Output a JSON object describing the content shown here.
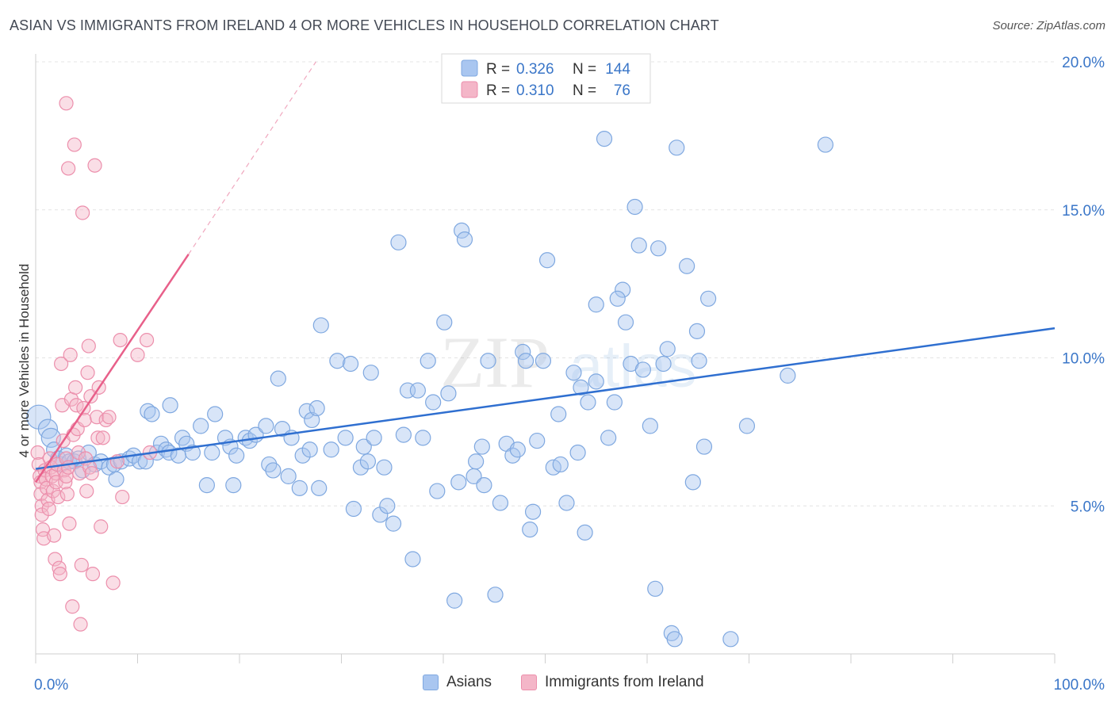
{
  "header": {
    "title": "ASIAN VS IMMIGRANTS FROM IRELAND 4 OR MORE VEHICLES IN HOUSEHOLD CORRELATION CHART",
    "source": "Source: ZipAtlas.com"
  },
  "watermark": {
    "zip": "ZIP",
    "atlas": "atlas"
  },
  "colors": {
    "blue_fill": "#a9c6f0",
    "blue_stroke": "#7fa8e0",
    "blue_line": "#2f6fd0",
    "pink_fill": "#f4b6c8",
    "pink_stroke": "#ec8fac",
    "pink_line": "#e8608a",
    "axis_text": "#3a76c8",
    "grid": "#e2e2e2"
  },
  "legend_box": {
    "rows": [
      {
        "r_label": "R =",
        "r_value": "0.326",
        "n_label": "N =",
        "n_value": "144",
        "color": "#a9c6f0"
      },
      {
        "r_label": "R =",
        "r_value": "0.310",
        "n_label": "N =",
        "n_value": "76",
        "color": "#f4b6c8"
      }
    ]
  },
  "bottom_legend": [
    {
      "label": "Asians",
      "color": "#a9c6f0"
    },
    {
      "label": "Immigrants from Ireland",
      "color": "#f4b6c8"
    }
  ],
  "chart_data": {
    "type": "scatter",
    "title": "ASIAN VS IMMIGRANTS FROM IRELAND 4 OR MORE VEHICLES IN HOUSEHOLD CORRELATION CHART",
    "xlabel": "",
    "ylabel": "4 or more Vehicles in Household",
    "xlim": [
      0,
      100
    ],
    "ylim": [
      0,
      20
    ],
    "x_tick_labels": [
      {
        "value": 0,
        "label": "0.0%"
      },
      {
        "value": 100,
        "label": "100.0%"
      }
    ],
    "y_tick_labels": [
      {
        "value": 5,
        "label": "5.0%"
      },
      {
        "value": 10,
        "label": "10.0%"
      },
      {
        "value": 15,
        "label": "15.0%"
      },
      {
        "value": 20,
        "label": "20.0%"
      }
    ],
    "grid": true,
    "legend_position": "top-center",
    "series": [
      {
        "name": "Asians",
        "color": "#a9c6f0",
        "trend": {
          "x": [
            0,
            100
          ],
          "y": [
            6.25,
            11.0
          ]
        },
        "points": [
          [
            0.3,
            8.0
          ],
          [
            1.2,
            7.6
          ],
          [
            1.5,
            7.3
          ],
          [
            1.8,
            6.9
          ],
          [
            2.2,
            6.6
          ],
          [
            2.5,
            6.4
          ],
          [
            3.0,
            6.7
          ],
          [
            3.3,
            6.5
          ],
          [
            3.8,
            6.5
          ],
          [
            4.2,
            6.6
          ],
          [
            4.6,
            6.2
          ],
          [
            5.2,
            6.8
          ],
          [
            5.8,
            6.4
          ],
          [
            6.4,
            6.5
          ],
          [
            7.2,
            6.3
          ],
          [
            7.7,
            6.4
          ],
          [
            7.9,
            5.9
          ],
          [
            8.4,
            6.5
          ],
          [
            9.2,
            6.6
          ],
          [
            9.6,
            6.7
          ],
          [
            10.2,
            6.5
          ],
          [
            10.8,
            6.5
          ],
          [
            11.0,
            8.2
          ],
          [
            11.4,
            8.1
          ],
          [
            11.9,
            6.8
          ],
          [
            12.3,
            7.1
          ],
          [
            12.8,
            6.9
          ],
          [
            13.1,
            6.8
          ],
          [
            13.2,
            8.4
          ],
          [
            14.0,
            6.7
          ],
          [
            14.4,
            7.3
          ],
          [
            14.8,
            7.1
          ],
          [
            15.4,
            6.8
          ],
          [
            16.2,
            7.7
          ],
          [
            16.8,
            5.7
          ],
          [
            17.3,
            6.8
          ],
          [
            17.6,
            8.1
          ],
          [
            18.6,
            7.3
          ],
          [
            19.1,
            7.0
          ],
          [
            19.4,
            5.7
          ],
          [
            19.7,
            6.7
          ],
          [
            20.6,
            7.3
          ],
          [
            21.0,
            7.2
          ],
          [
            21.6,
            7.4
          ],
          [
            22.6,
            7.7
          ],
          [
            22.9,
            6.4
          ],
          [
            23.3,
            6.2
          ],
          [
            23.8,
            9.3
          ],
          [
            24.2,
            7.6
          ],
          [
            24.8,
            6.0
          ],
          [
            25.1,
            7.3
          ],
          [
            25.9,
            5.6
          ],
          [
            26.2,
            6.7
          ],
          [
            26.6,
            8.2
          ],
          [
            26.9,
            6.9
          ],
          [
            27.1,
            7.9
          ],
          [
            27.6,
            8.3
          ],
          [
            27.8,
            5.6
          ],
          [
            28.0,
            11.1
          ],
          [
            29.0,
            6.9
          ],
          [
            29.6,
            9.9
          ],
          [
            30.4,
            7.3
          ],
          [
            30.9,
            9.8
          ],
          [
            31.2,
            4.9
          ],
          [
            31.9,
            6.3
          ],
          [
            32.2,
            7.0
          ],
          [
            32.6,
            6.5
          ],
          [
            32.9,
            9.5
          ],
          [
            33.2,
            7.3
          ],
          [
            33.8,
            4.7
          ],
          [
            34.2,
            6.3
          ],
          [
            34.5,
            5.0
          ],
          [
            35.1,
            4.4
          ],
          [
            35.6,
            13.9
          ],
          [
            36.1,
            7.4
          ],
          [
            36.5,
            8.9
          ],
          [
            37.0,
            3.2
          ],
          [
            37.5,
            8.9
          ],
          [
            38.0,
            7.3
          ],
          [
            38.5,
            9.9
          ],
          [
            39.0,
            8.5
          ],
          [
            39.4,
            5.5
          ],
          [
            40.1,
            11.2
          ],
          [
            40.5,
            8.8
          ],
          [
            41.1,
            1.8
          ],
          [
            41.5,
            5.8
          ],
          [
            41.8,
            14.3
          ],
          [
            42.1,
            14.0
          ],
          [
            43.0,
            6.0
          ],
          [
            43.2,
            6.5
          ],
          [
            43.8,
            7.0
          ],
          [
            44.0,
            5.7
          ],
          [
            44.4,
            9.9
          ],
          [
            45.1,
            2.0
          ],
          [
            45.6,
            5.1
          ],
          [
            46.2,
            7.1
          ],
          [
            46.8,
            6.7
          ],
          [
            47.3,
            6.9
          ],
          [
            47.8,
            10.2
          ],
          [
            48.1,
            9.9
          ],
          [
            48.5,
            4.2
          ],
          [
            48.8,
            4.8
          ],
          [
            49.2,
            7.2
          ],
          [
            49.8,
            9.9
          ],
          [
            50.2,
            13.3
          ],
          [
            50.8,
            6.3
          ],
          [
            51.3,
            8.1
          ],
          [
            51.5,
            6.4
          ],
          [
            52.1,
            5.1
          ],
          [
            52.8,
            9.5
          ],
          [
            53.2,
            6.8
          ],
          [
            53.5,
            9.0
          ],
          [
            53.9,
            4.1
          ],
          [
            54.2,
            8.5
          ],
          [
            55.0,
            9.2
          ],
          [
            55.8,
            17.4
          ],
          [
            56.2,
            7.3
          ],
          [
            56.8,
            8.5
          ],
          [
            57.6,
            12.3
          ],
          [
            57.9,
            11.2
          ],
          [
            58.4,
            9.8
          ],
          [
            59.2,
            13.8
          ],
          [
            59.6,
            9.6
          ],
          [
            60.3,
            7.7
          ],
          [
            60.8,
            2.2
          ],
          [
            61.1,
            13.7
          ],
          [
            61.6,
            9.8
          ],
          [
            62.0,
            10.3
          ],
          [
            62.4,
            0.7
          ],
          [
            62.7,
            0.5
          ],
          [
            62.9,
            17.1
          ],
          [
            63.9,
            13.1
          ],
          [
            64.5,
            5.8
          ],
          [
            64.9,
            10.9
          ],
          [
            65.1,
            9.9
          ],
          [
            65.6,
            7.0
          ],
          [
            66.0,
            12.0
          ],
          [
            68.2,
            0.5
          ],
          [
            69.8,
            7.7
          ],
          [
            73.8,
            9.4
          ],
          [
            77.5,
            17.2
          ],
          [
            57.1,
            12.0
          ],
          [
            58.8,
            15.1
          ],
          [
            55.0,
            11.8
          ]
        ]
      },
      {
        "name": "Immigrants from Ireland",
        "color": "#f4b6c8",
        "trend": {
          "x": [
            0,
            15
          ],
          "y": [
            5.8,
            13.5
          ]
        },
        "trend_dashed": {
          "x": [
            15,
            27.5
          ],
          "y": [
            13.5,
            20.0
          ]
        },
        "points": [
          [
            0.2,
            6.8
          ],
          [
            0.3,
            6.4
          ],
          [
            0.4,
            6.0
          ],
          [
            0.5,
            5.8
          ],
          [
            0.5,
            5.4
          ],
          [
            0.6,
            5.0
          ],
          [
            0.6,
            4.7
          ],
          [
            0.7,
            4.2
          ],
          [
            0.8,
            3.9
          ],
          [
            0.9,
            6.2
          ],
          [
            1.0,
            5.9
          ],
          [
            1.1,
            5.6
          ],
          [
            1.2,
            5.2
          ],
          [
            1.3,
            4.9
          ],
          [
            1.4,
            6.6
          ],
          [
            1.5,
            6.3
          ],
          [
            1.6,
            6.0
          ],
          [
            1.7,
            5.5
          ],
          [
            1.8,
            4.0
          ],
          [
            1.9,
            3.2
          ],
          [
            2.0,
            6.1
          ],
          [
            2.0,
            5.8
          ],
          [
            2.1,
            6.4
          ],
          [
            2.2,
            5.3
          ],
          [
            2.3,
            2.9
          ],
          [
            2.4,
            2.7
          ],
          [
            2.5,
            9.8
          ],
          [
            2.6,
            8.4
          ],
          [
            2.7,
            7.2
          ],
          [
            2.8,
            6.2
          ],
          [
            2.9,
            5.8
          ],
          [
            3.0,
            6.6
          ],
          [
            3.0,
            6.0
          ],
          [
            3.1,
            5.4
          ],
          [
            3.2,
            6.3
          ],
          [
            3.3,
            4.4
          ],
          [
            3.4,
            10.1
          ],
          [
            3.5,
            8.6
          ],
          [
            3.6,
            1.6
          ],
          [
            3.7,
            7.4
          ],
          [
            3.8,
            17.2
          ],
          [
            3.9,
            9.0
          ],
          [
            4.0,
            8.4
          ],
          [
            4.1,
            7.6
          ],
          [
            4.2,
            6.8
          ],
          [
            4.3,
            6.1
          ],
          [
            4.4,
            1.0
          ],
          [
            4.5,
            3.0
          ],
          [
            4.6,
            14.9
          ],
          [
            4.7,
            8.3
          ],
          [
            4.8,
            7.9
          ],
          [
            4.9,
            6.6
          ],
          [
            5.0,
            5.5
          ],
          [
            5.1,
            9.5
          ],
          [
            5.2,
            10.4
          ],
          [
            5.3,
            6.3
          ],
          [
            5.4,
            8.7
          ],
          [
            5.5,
            6.1
          ],
          [
            5.6,
            2.7
          ],
          [
            5.8,
            16.5
          ],
          [
            6.0,
            8.0
          ],
          [
            6.1,
            7.3
          ],
          [
            6.2,
            9.0
          ],
          [
            6.4,
            4.3
          ],
          [
            6.6,
            7.3
          ],
          [
            6.9,
            7.9
          ],
          [
            7.2,
            8.0
          ],
          [
            7.6,
            2.4
          ],
          [
            8.0,
            6.5
          ],
          [
            8.5,
            5.3
          ],
          [
            3.2,
            16.4
          ],
          [
            3.0,
            18.6
          ],
          [
            8.3,
            10.6
          ],
          [
            10.0,
            10.1
          ],
          [
            10.9,
            10.6
          ],
          [
            11.2,
            6.8
          ]
        ]
      }
    ]
  }
}
